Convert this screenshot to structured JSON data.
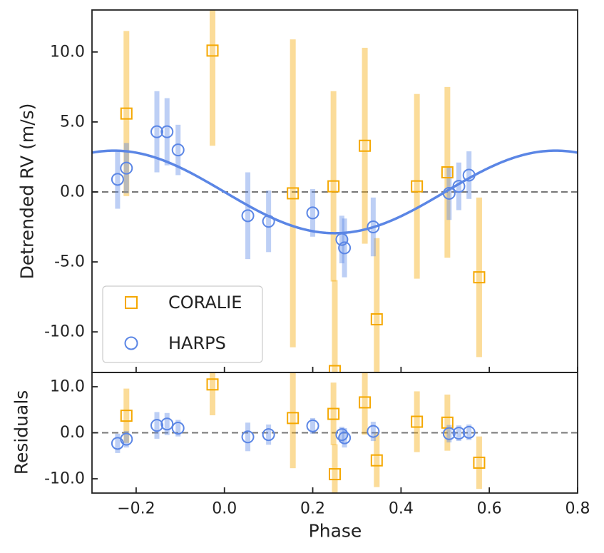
{
  "chart_data": {
    "type": "scatter",
    "xlabel": "Phase",
    "xlim": [
      -0.3,
      0.8
    ],
    "x_ticks": [
      "−0.2",
      "0.0",
      "0.2",
      "0.4",
      "0.6",
      "0.8"
    ],
    "x_tick_values": [
      -0.2,
      0.0,
      0.2,
      0.4,
      0.6,
      0.8
    ],
    "colors": {
      "coralie": "#f5a800",
      "harps": "#5b86e5",
      "model": "#5b86e5",
      "zero_line": "#777777"
    },
    "legend": {
      "placement": "lower-left",
      "entries": [
        "CORALIE",
        "HARPS"
      ]
    },
    "main": {
      "ylabel": "Detrended RV (m/s)",
      "ylim": [
        -12.9,
        13.0
      ],
      "y_ticks": [
        "10.0",
        "5.0",
        "0.0",
        "-5.0",
        "-10.0"
      ],
      "y_tick_values": [
        10,
        5,
        0,
        -5,
        -10
      ],
      "model": {
        "type": "sinusoid",
        "amplitude": 2.95,
        "min_phase": 0.25,
        "period": 1.0
      },
      "series": [
        {
          "name": "CORALIE",
          "marker": "square",
          "points": [
            {
              "x": -0.222,
              "y": 5.6,
              "err": 5.9
            },
            {
              "x": -0.027,
              "y": 10.1,
              "err": 6.8
            },
            {
              "x": 0.155,
              "y": -0.1,
              "err": 11.0
            },
            {
              "x": 0.247,
              "y": 0.4,
              "err": 6.8
            },
            {
              "x": 0.25,
              "y": -12.8,
              "err": 6.5
            },
            {
              "x": 0.318,
              "y": 3.3,
              "err": 7.0
            },
            {
              "x": 0.345,
              "y": -9.1,
              "err": 5.8
            },
            {
              "x": 0.436,
              "y": 0.4,
              "err": 6.6
            },
            {
              "x": 0.505,
              "y": 1.4,
              "err": 6.1
            },
            {
              "x": 0.577,
              "y": -6.1,
              "err": 5.7
            }
          ]
        },
        {
          "name": "HARPS",
          "marker": "circle",
          "points": [
            {
              "x": -0.242,
              "y": 0.9,
              "err": 2.1
            },
            {
              "x": -0.222,
              "y": 1.7,
              "err": 1.8
            },
            {
              "x": -0.153,
              "y": 4.3,
              "err": 2.9
            },
            {
              "x": -0.13,
              "y": 4.3,
              "err": 2.4
            },
            {
              "x": -0.105,
              "y": 3.0,
              "err": 1.8
            },
            {
              "x": 0.053,
              "y": -1.7,
              "err": 3.1
            },
            {
              "x": 0.1,
              "y": -2.1,
              "err": 2.2
            },
            {
              "x": 0.2,
              "y": -1.5,
              "err": 1.7
            },
            {
              "x": 0.266,
              "y": -3.4,
              "err": 1.7
            },
            {
              "x": 0.272,
              "y": -4.0,
              "err": 2.1
            },
            {
              "x": 0.337,
              "y": -2.5,
              "err": 2.1
            },
            {
              "x": 0.509,
              "y": -0.1,
              "err": 1.9
            },
            {
              "x": 0.531,
              "y": 0.4,
              "err": 1.7
            },
            {
              "x": 0.554,
              "y": 1.2,
              "err": 1.7
            }
          ]
        }
      ]
    },
    "residuals": {
      "ylabel": "Residuals",
      "ylim": [
        -13.1,
        13.1
      ],
      "y_ticks": [
        "10.0",
        "0.0",
        "-10.0"
      ],
      "y_tick_values": [
        10,
        0,
        -10
      ],
      "series": [
        {
          "name": "CORALIE",
          "marker": "square",
          "points": [
            {
              "x": -0.222,
              "y": 3.7,
              "err": 5.9
            },
            {
              "x": -0.027,
              "y": 10.5,
              "err": 6.7
            },
            {
              "x": 0.155,
              "y": 3.2,
              "err": 10.9
            },
            {
              "x": 0.247,
              "y": 4.1,
              "err": 6.8
            },
            {
              "x": 0.25,
              "y": -9.0,
              "err": 6.5
            },
            {
              "x": 0.318,
              "y": 6.6,
              "err": 7.0
            },
            {
              "x": 0.345,
              "y": -6.0,
              "err": 5.8
            },
            {
              "x": 0.436,
              "y": 2.4,
              "err": 6.6
            },
            {
              "x": 0.505,
              "y": 2.2,
              "err": 6.1
            },
            {
              "x": 0.577,
              "y": -6.5,
              "err": 5.7
            }
          ]
        },
        {
          "name": "HARPS",
          "marker": "circle",
          "points": [
            {
              "x": -0.242,
              "y": -2.3,
              "err": 2.1
            },
            {
              "x": -0.222,
              "y": -1.4,
              "err": 1.8
            },
            {
              "x": -0.153,
              "y": 1.6,
              "err": 2.9
            },
            {
              "x": -0.13,
              "y": 1.9,
              "err": 2.4
            },
            {
              "x": -0.105,
              "y": 1.0,
              "err": 1.8
            },
            {
              "x": 0.053,
              "y": -0.9,
              "err": 3.1
            },
            {
              "x": 0.1,
              "y": -0.4,
              "err": 2.2
            },
            {
              "x": 0.2,
              "y": 1.5,
              "err": 1.7
            },
            {
              "x": 0.266,
              "y": -0.4,
              "err": 1.7
            },
            {
              "x": 0.272,
              "y": -1.1,
              "err": 2.1
            },
            {
              "x": 0.337,
              "y": 0.3,
              "err": 2.1
            },
            {
              "x": 0.509,
              "y": -0.2,
              "err": 1.9
            },
            {
              "x": 0.531,
              "y": -0.1,
              "err": 1.7
            },
            {
              "x": 0.554,
              "y": 0.1,
              "err": 1.7
            }
          ]
        }
      ]
    }
  }
}
